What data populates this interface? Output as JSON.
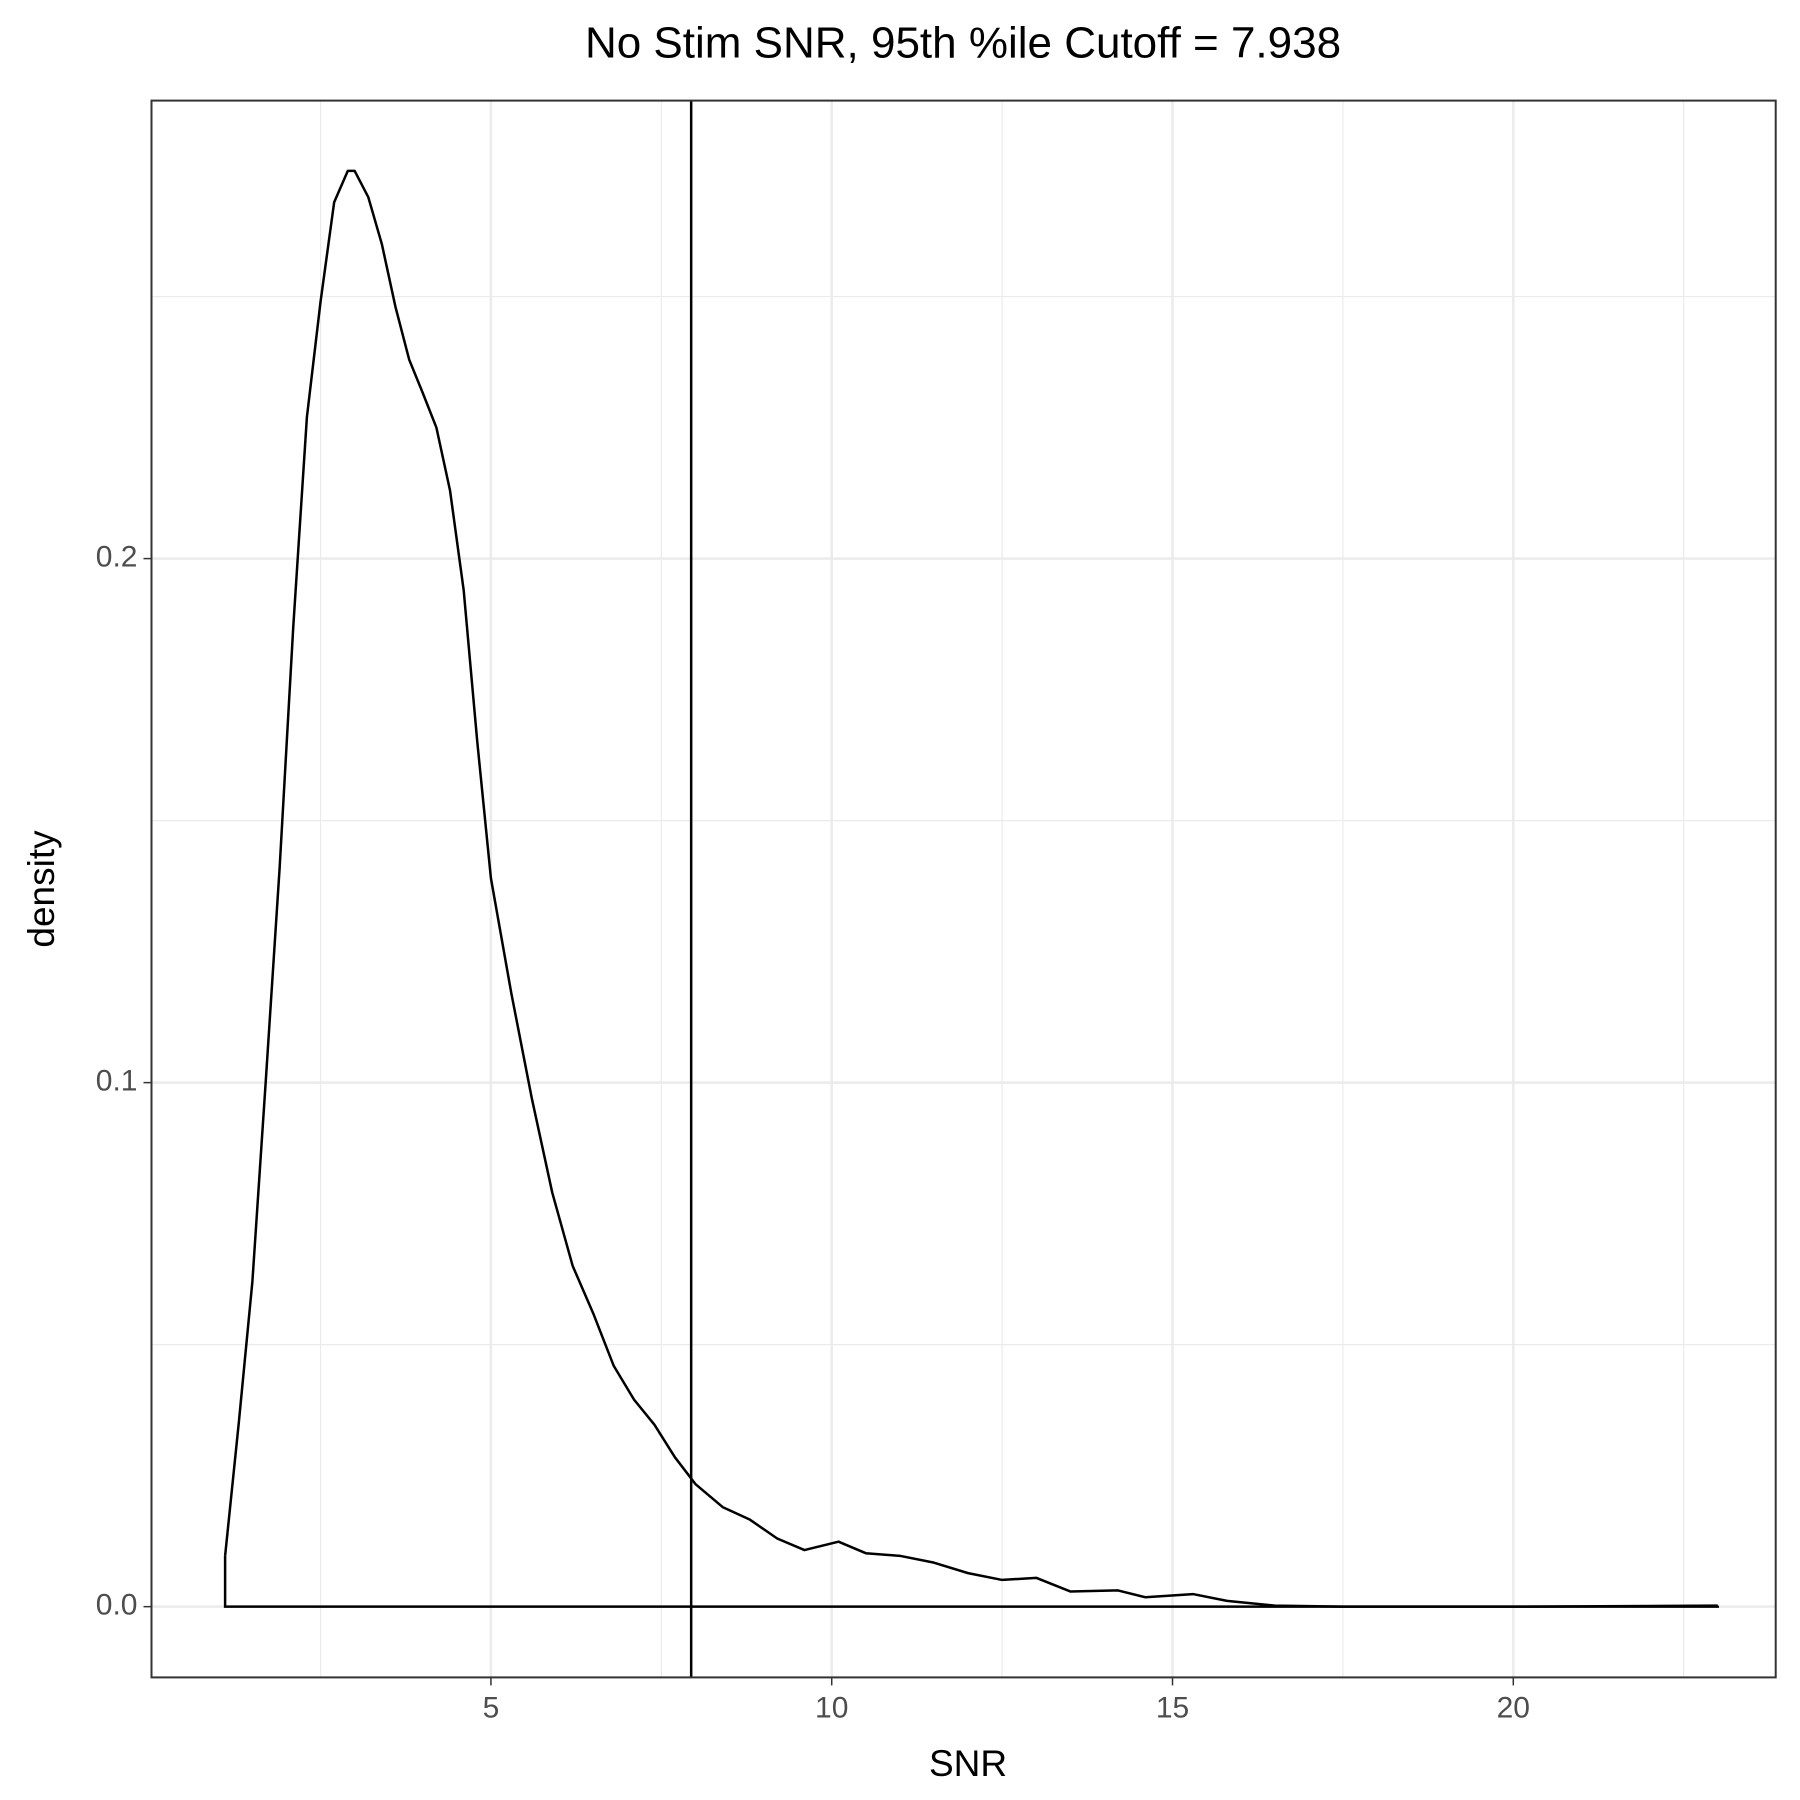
{
  "chart_data": {
    "type": "density",
    "title": "No Stim SNR, 95th %ile Cutoff =  7.938",
    "x_label": "SNR",
    "y_label": "density",
    "vline": 7.938,
    "color": "#000000",
    "xlim": [
      0.02,
      23.85
    ],
    "ylim": [
      -0.0135,
      0.2874
    ],
    "xticks": [
      5,
      10,
      15,
      20
    ],
    "yticks": [
      {
        "value": 0,
        "label": "0.0"
      },
      0.1,
      0.2
    ],
    "xminorticks": [
      2.5,
      7.5,
      12.5,
      17.5,
      22.5
    ],
    "yminorticks": [
      0.05,
      0.15,
      0.25
    ],
    "grid": true,
    "x": [
      1.1,
      1.3,
      1.5,
      1.7,
      1.9,
      2.1,
      2.3,
      2.5,
      2.7,
      2.9,
      3.0,
      3.2,
      3.4,
      3.6,
      3.8,
      4.0,
      4.2,
      4.4,
      4.6,
      4.8,
      5.0,
      5.3,
      5.6,
      5.9,
      6.2,
      6.5,
      6.8,
      7.1,
      7.4,
      7.7,
      8.0,
      8.4,
      8.8,
      9.2,
      9.6,
      10.1,
      10.5,
      11.0,
      11.5,
      12.0,
      12.5,
      13.0,
      13.5,
      14.2,
      14.6,
      15.3,
      15.8,
      16.5,
      17.5,
      20,
      23
    ],
    "values": [
      0.0097,
      0.035,
      0.062,
      0.101,
      0.141,
      0.187,
      0.227,
      0.249,
      0.268,
      0.274,
      0.274,
      0.269,
      0.26,
      0.248,
      0.238,
      0.2316,
      0.225,
      0.213,
      0.194,
      0.165,
      0.139,
      0.117,
      0.097,
      0.079,
      0.065,
      0.056,
      0.046,
      0.0395,
      0.0347,
      0.0285,
      0.0234,
      0.019,
      0.0166,
      0.013,
      0.0108,
      0.0124,
      0.0102,
      0.0097,
      0.0084,
      0.0064,
      0.0051,
      0.0055,
      0.0029,
      0.0031,
      0.0018,
      0.0024,
      0.0011,
      0.0002,
      0,
      0,
      0.0002
    ]
  }
}
